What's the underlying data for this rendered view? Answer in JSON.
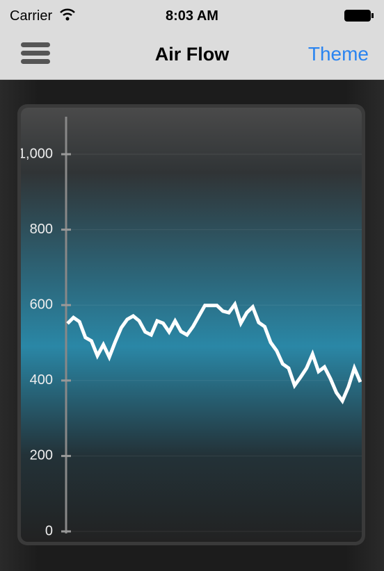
{
  "status_bar": {
    "carrier": "Carrier",
    "time": "8:03 AM"
  },
  "nav_bar": {
    "title": "Air Flow",
    "right_button": "Theme"
  },
  "chart_data": {
    "type": "line",
    "values": [
      551,
      567,
      556,
      514,
      505,
      466,
      495,
      462,
      503,
      540,
      562,
      571,
      558,
      529,
      521,
      558,
      552,
      529,
      558,
      530,
      521,
      543,
      571,
      599,
      599,
      599,
      584,
      580,
      602,
      552,
      580,
      595,
      554,
      543,
      501,
      479,
      444,
      433,
      387,
      409,
      433,
      470,
      424,
      436,
      405,
      368,
      346,
      383,
      433,
      396
    ],
    "color": "#ffffff",
    "ylim": [
      0,
      1000
    ],
    "yticks": [
      0,
      200,
      400,
      600,
      800,
      {
        "value": 1000,
        "label": "1,000"
      }
    ],
    "grid": true
  }
}
